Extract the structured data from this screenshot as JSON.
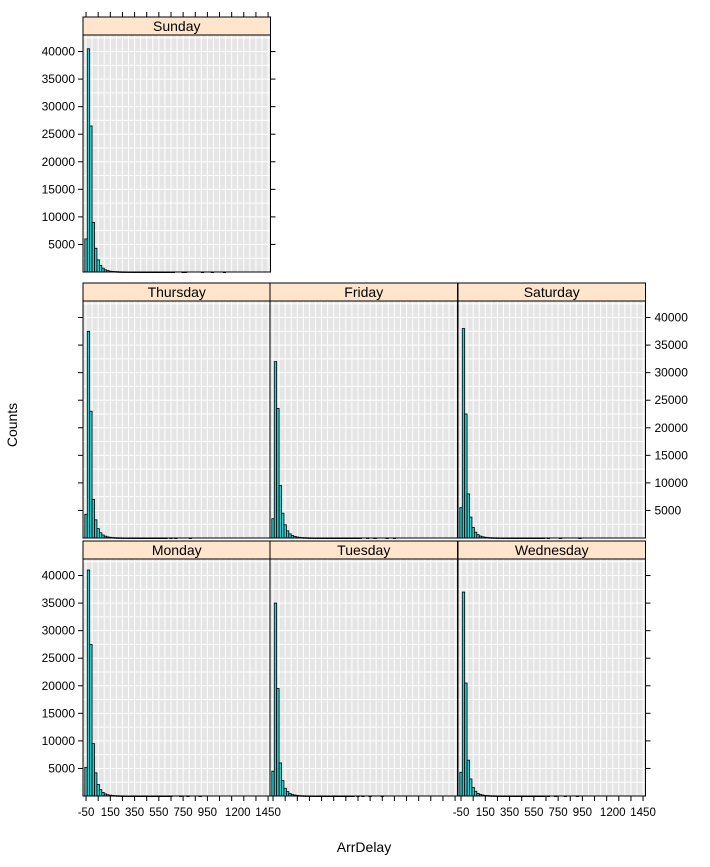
{
  "chart_data": {
    "type": "bar",
    "xlabel": "ArrDelay",
    "ylabel": "Counts",
    "xlim": [
      -75,
      1470
    ],
    "ylim": [
      0,
      43000
    ],
    "xticks": [
      -50,
      150,
      350,
      550,
      750,
      950,
      1200,
      1450
    ],
    "yticks": [
      5000,
      10000,
      15000,
      20000,
      25000,
      30000,
      35000,
      40000
    ],
    "bin_width": 20,
    "bin_start": -60,
    "colors": {
      "bar_fill": "#33cccc",
      "strip": "#ffe5cc",
      "panel_bg": "#e5e5e5",
      "grid": "#ffffff"
    },
    "panels": [
      {
        "label": "Sunday",
        "values": [
          6000,
          40500,
          26500,
          9000,
          4300,
          2200,
          1200,
          700,
          400,
          250,
          150,
          100,
          80,
          60,
          40,
          30,
          25,
          20,
          15,
          12,
          10,
          8,
          6,
          5,
          4,
          3,
          3,
          2,
          2,
          2,
          2,
          2,
          1,
          1,
          1,
          1,
          1,
          0,
          0,
          0,
          1,
          1,
          0,
          0,
          0,
          0,
          0,
          0,
          1,
          0,
          0,
          0,
          1,
          0,
          0,
          0,
          0,
          1,
          0,
          0,
          0,
          0,
          0,
          0,
          0,
          0,
          0,
          0,
          0,
          0,
          0,
          0,
          0,
          0,
          0,
          0,
          0,
          0
        ]
      },
      {
        "label": "Thursday",
        "values": [
          4300,
          37500,
          23000,
          7000,
          3300,
          1700,
          950,
          550,
          330,
          200,
          130,
          90,
          60,
          45,
          35,
          25,
          20,
          15,
          12,
          10,
          8,
          6,
          5,
          4,
          3,
          3,
          2,
          2,
          2,
          1,
          1,
          1,
          1,
          1,
          0,
          1,
          0,
          1,
          0,
          0,
          0,
          0,
          0,
          1,
          0,
          0,
          0,
          0,
          0,
          0,
          0,
          0,
          0,
          0,
          0,
          0,
          0,
          0,
          0,
          0,
          0,
          0,
          0,
          0,
          0,
          0,
          0,
          0,
          0,
          0,
          0,
          0,
          0,
          0,
          0,
          0,
          0,
          0
        ]
      },
      {
        "label": "Friday",
        "values": [
          3500,
          32000,
          23500,
          9500,
          4500,
          2400,
          1300,
          750,
          450,
          280,
          180,
          120,
          80,
          60,
          45,
          35,
          25,
          20,
          15,
          12,
          10,
          8,
          6,
          5,
          4,
          3,
          3,
          2,
          2,
          2,
          1,
          1,
          1,
          1,
          1,
          1,
          1,
          0,
          0,
          1,
          0,
          0,
          1,
          0,
          0,
          0,
          0,
          1,
          0,
          0,
          1,
          0,
          0,
          0,
          0,
          0,
          0,
          0,
          0,
          0,
          0,
          0,
          0,
          0,
          0,
          0,
          0,
          0,
          0,
          0,
          0,
          0,
          0,
          0,
          0,
          0,
          0,
          0
        ]
      },
      {
        "label": "Saturday",
        "values": [
          5500,
          38000,
          22500,
          8000,
          3800,
          1900,
          1050,
          600,
          350,
          220,
          140,
          95,
          65,
          50,
          38,
          28,
          22,
          17,
          13,
          10,
          8,
          6,
          5,
          4,
          3,
          3,
          2,
          2,
          2,
          1,
          1,
          1,
          1,
          1,
          1,
          0,
          1,
          0,
          0,
          0,
          0,
          1,
          0,
          0,
          0,
          0,
          0,
          0,
          0,
          1,
          0,
          0,
          0,
          0,
          0,
          0,
          0,
          0,
          0,
          0,
          0,
          0,
          0,
          0,
          0,
          0,
          0,
          0,
          0,
          0,
          0,
          0,
          0,
          0,
          0,
          0,
          0,
          0
        ]
      },
      {
        "label": "Monday",
        "values": [
          5200,
          41000,
          27500,
          9500,
          4200,
          2100,
          1150,
          650,
          380,
          240,
          150,
          100,
          70,
          50,
          38,
          28,
          22,
          17,
          13,
          10,
          8,
          6,
          5,
          4,
          3,
          3,
          2,
          2,
          2,
          1,
          1,
          1,
          1,
          1,
          1,
          1,
          0,
          0,
          0,
          1,
          0,
          0,
          1,
          0,
          0,
          0,
          0,
          1,
          0,
          0,
          0,
          0,
          0,
          0,
          0,
          0,
          0,
          0,
          0,
          0,
          0,
          0,
          0,
          0,
          0,
          0,
          0,
          0,
          0,
          0,
          0,
          0,
          0,
          0,
          0,
          0,
          0,
          0
        ]
      },
      {
        "label": "Tuesday",
        "values": [
          4500,
          35000,
          19500,
          6000,
          2800,
          1400,
          800,
          450,
          270,
          170,
          110,
          75,
          50,
          38,
          28,
          22,
          17,
          13,
          10,
          8,
          6,
          5,
          4,
          3,
          3,
          2,
          2,
          2,
          1,
          1,
          1,
          1,
          1,
          1,
          0,
          1,
          0,
          1,
          0,
          0,
          1,
          0,
          0,
          0,
          0,
          1,
          0,
          0,
          0,
          0,
          0,
          0,
          0,
          0,
          0,
          0,
          0,
          0,
          0,
          0,
          0,
          0,
          0,
          0,
          0,
          0,
          0,
          0,
          0,
          0,
          0,
          0,
          0,
          0,
          0,
          0,
          0,
          0
        ]
      },
      {
        "label": "Wednesday",
        "values": [
          4300,
          37000,
          20500,
          6500,
          3100,
          1550,
          850,
          480,
          290,
          180,
          115,
          80,
          55,
          40,
          30,
          23,
          18,
          14,
          11,
          9,
          7,
          5,
          4,
          3,
          3,
          2,
          2,
          2,
          1,
          1,
          1,
          1,
          1,
          1,
          1,
          0,
          1,
          0,
          0,
          1,
          0,
          0,
          0,
          1,
          0,
          0,
          0,
          0,
          1,
          0,
          0,
          0,
          0,
          0,
          0,
          0,
          0,
          0,
          0,
          0,
          0,
          0,
          0,
          0,
          0,
          0,
          0,
          0,
          0,
          0,
          0,
          0,
          0,
          0,
          0,
          0,
          0,
          0
        ]
      }
    ]
  }
}
